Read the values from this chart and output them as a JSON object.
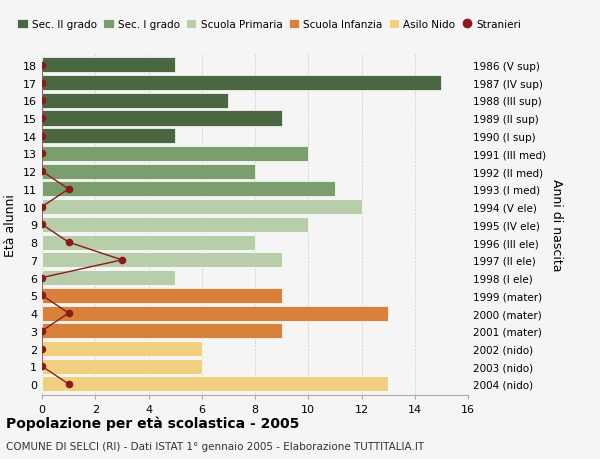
{
  "ages": [
    18,
    17,
    16,
    15,
    14,
    13,
    12,
    11,
    10,
    9,
    8,
    7,
    6,
    5,
    4,
    3,
    2,
    1,
    0
  ],
  "years": [
    "1986 (V sup)",
    "1987 (IV sup)",
    "1988 (III sup)",
    "1989 (II sup)",
    "1990 (I sup)",
    "1991 (III med)",
    "1992 (II med)",
    "1993 (I med)",
    "1994 (V ele)",
    "1995 (IV ele)",
    "1996 (III ele)",
    "1997 (II ele)",
    "1998 (I ele)",
    "1999 (mater)",
    "2000 (mater)",
    "2001 (mater)",
    "2002 (nido)",
    "2003 (nido)",
    "2004 (nido)"
  ],
  "values": [
    5,
    15,
    7,
    9,
    5,
    10,
    8,
    11,
    12,
    10,
    8,
    9,
    5,
    9,
    13,
    9,
    6,
    6,
    13
  ],
  "bar_colors": [
    "#4a6741",
    "#4a6741",
    "#4a6741",
    "#4a6741",
    "#4a6741",
    "#7a9e6e",
    "#7a9e6e",
    "#7a9e6e",
    "#b8ceaa",
    "#b8ceaa",
    "#b8ceaa",
    "#b8ceaa",
    "#b8ceaa",
    "#d9813a",
    "#d9813a",
    "#d9813a",
    "#f0d080",
    "#f0d080",
    "#f0d080"
  ],
  "stranieri_values": [
    0,
    0,
    0,
    0,
    0,
    0,
    0,
    1,
    0,
    0,
    1,
    3,
    0,
    0,
    1,
    0,
    0,
    0,
    1
  ],
  "stranieri_color": "#8b1a1a",
  "legend_labels": [
    "Sec. II grado",
    "Sec. I grado",
    "Scuola Primaria",
    "Scuola Infanzia",
    "Asilo Nido",
    "Stranieri"
  ],
  "legend_colors": [
    "#4a6741",
    "#7a9e6e",
    "#b8ceaa",
    "#d9813a",
    "#f0d080",
    "#8b1a1a"
  ],
  "ylabel_left": "Età alunni",
  "ylabel_right": "Anni di nascita",
  "xlim": [
    0,
    16
  ],
  "xticks": [
    0,
    2,
    4,
    6,
    8,
    10,
    12,
    14,
    16
  ],
  "title": "Popolazione per età scolastica - 2005",
  "subtitle": "COMUNE DI SELCI (RI) - Dati ISTAT 1° gennaio 2005 - Elaborazione TUTTITALIA.IT",
  "bg_color": "#f5f5f5",
  "bar_height": 0.85
}
